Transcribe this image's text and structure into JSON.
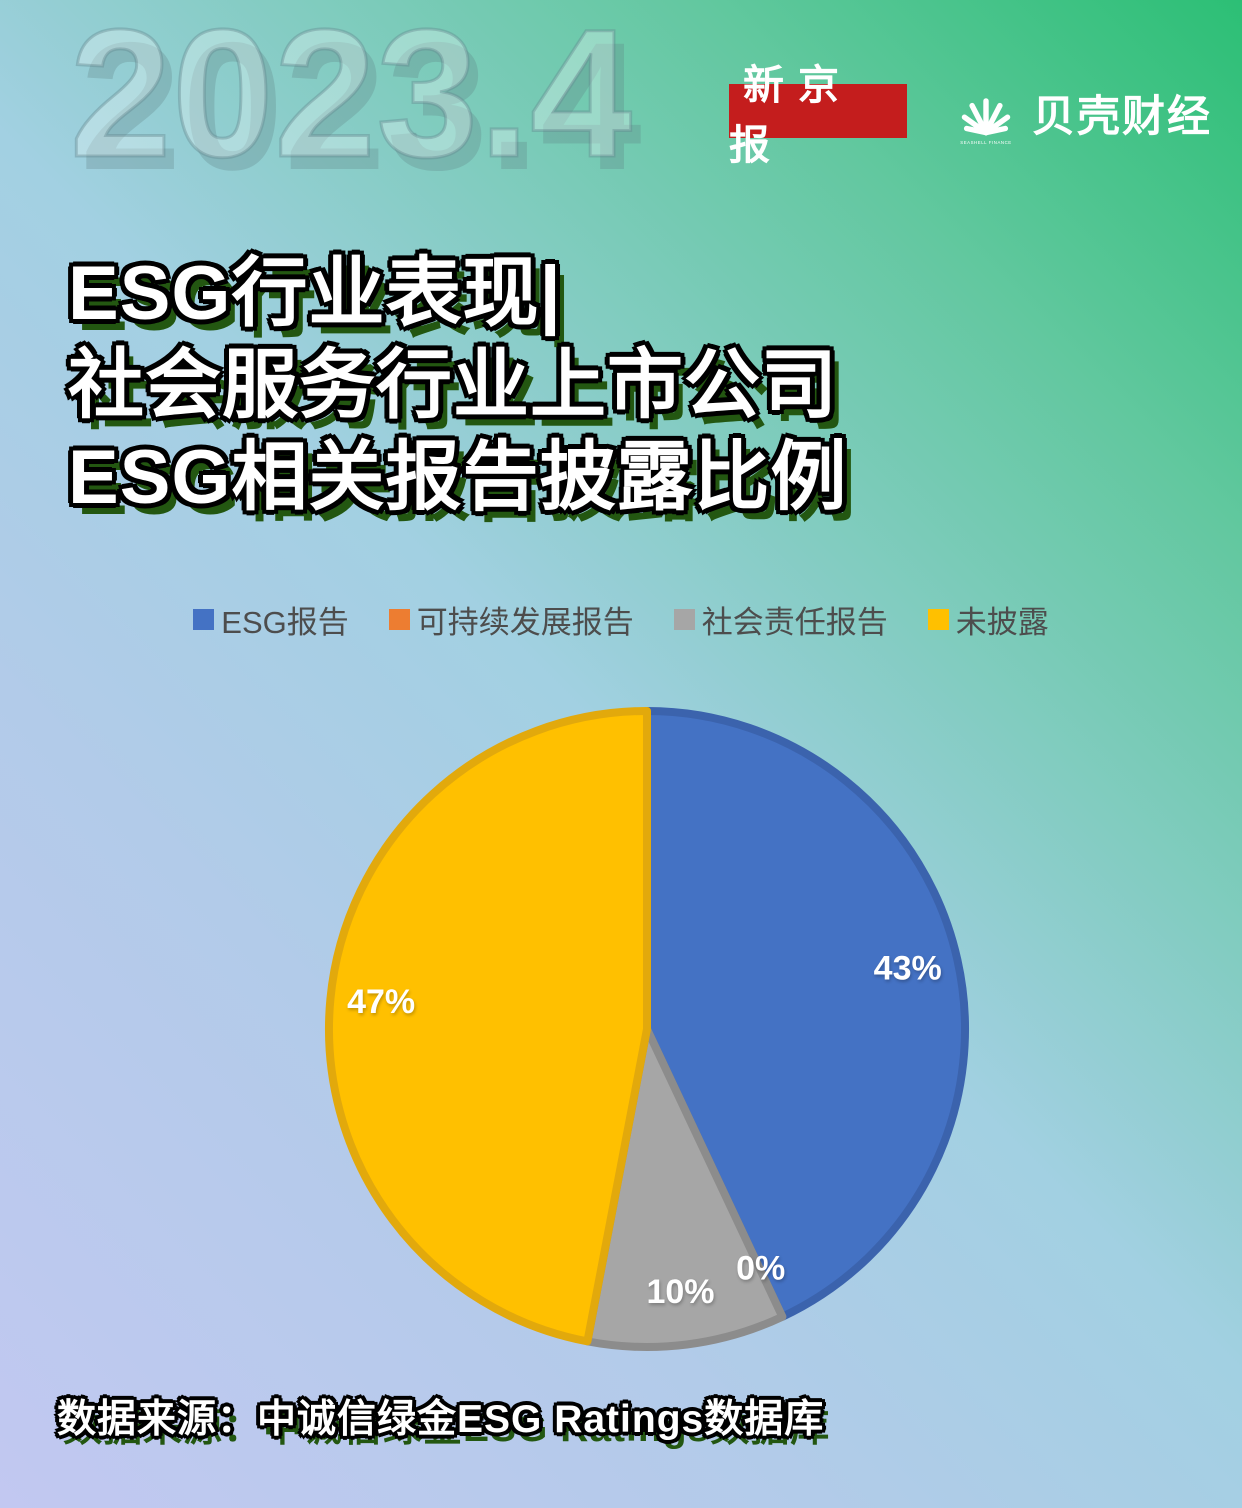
{
  "watermark": "2023.4",
  "header": {
    "badge_label": "新京报",
    "badge_bg": "#c41d1d",
    "brand_name": "贝壳财经",
    "brand_sub": "SEASHELL FINANCE"
  },
  "title": {
    "line1": "ESG行业表现|",
    "line2": "社会服务行业上市公司",
    "line3": "ESG相关报告披露比例"
  },
  "legend": [
    {
      "label": "ESG报告",
      "color": "#4472C4"
    },
    {
      "label": "可持续发展报告",
      "color": "#ED7D31"
    },
    {
      "label": "社会责任报告",
      "color": "#A6A6A6"
    },
    {
      "label": "未披露",
      "color": "#FFC000"
    }
  ],
  "chart_data": {
    "type": "pie",
    "title": "社会服务行业上市公司ESG相关报告披露比例",
    "categories": [
      "ESG报告",
      "可持续发展报告",
      "社会责任报告",
      "未披露"
    ],
    "values": [
      43,
      0,
      10,
      47
    ],
    "labels": [
      "43%",
      "0%",
      "10%",
      "47%"
    ],
    "colors": [
      "#4472C4",
      "#ED7D31",
      "#A6A6A6",
      "#FFC000"
    ],
    "border_colors": [
      "#3B63AD",
      "#C9682A",
      "#8C8C8C",
      "#E2A90C"
    ],
    "start_angle_deg": 0,
    "direction": "clockwise",
    "legend_position": "top",
    "label_color": "#FFFFFF"
  },
  "source": "数据来源：中诚信绿金ESG Ratings数据库",
  "colors": {
    "bg_gradient_bottom_left": "#c2c8f1",
    "bg_gradient_middle": "#a2d0e2",
    "bg_gradient_top_right": "#2cbf75",
    "title_shadow": "#235711",
    "legend_text": "#4d4d4d"
  }
}
